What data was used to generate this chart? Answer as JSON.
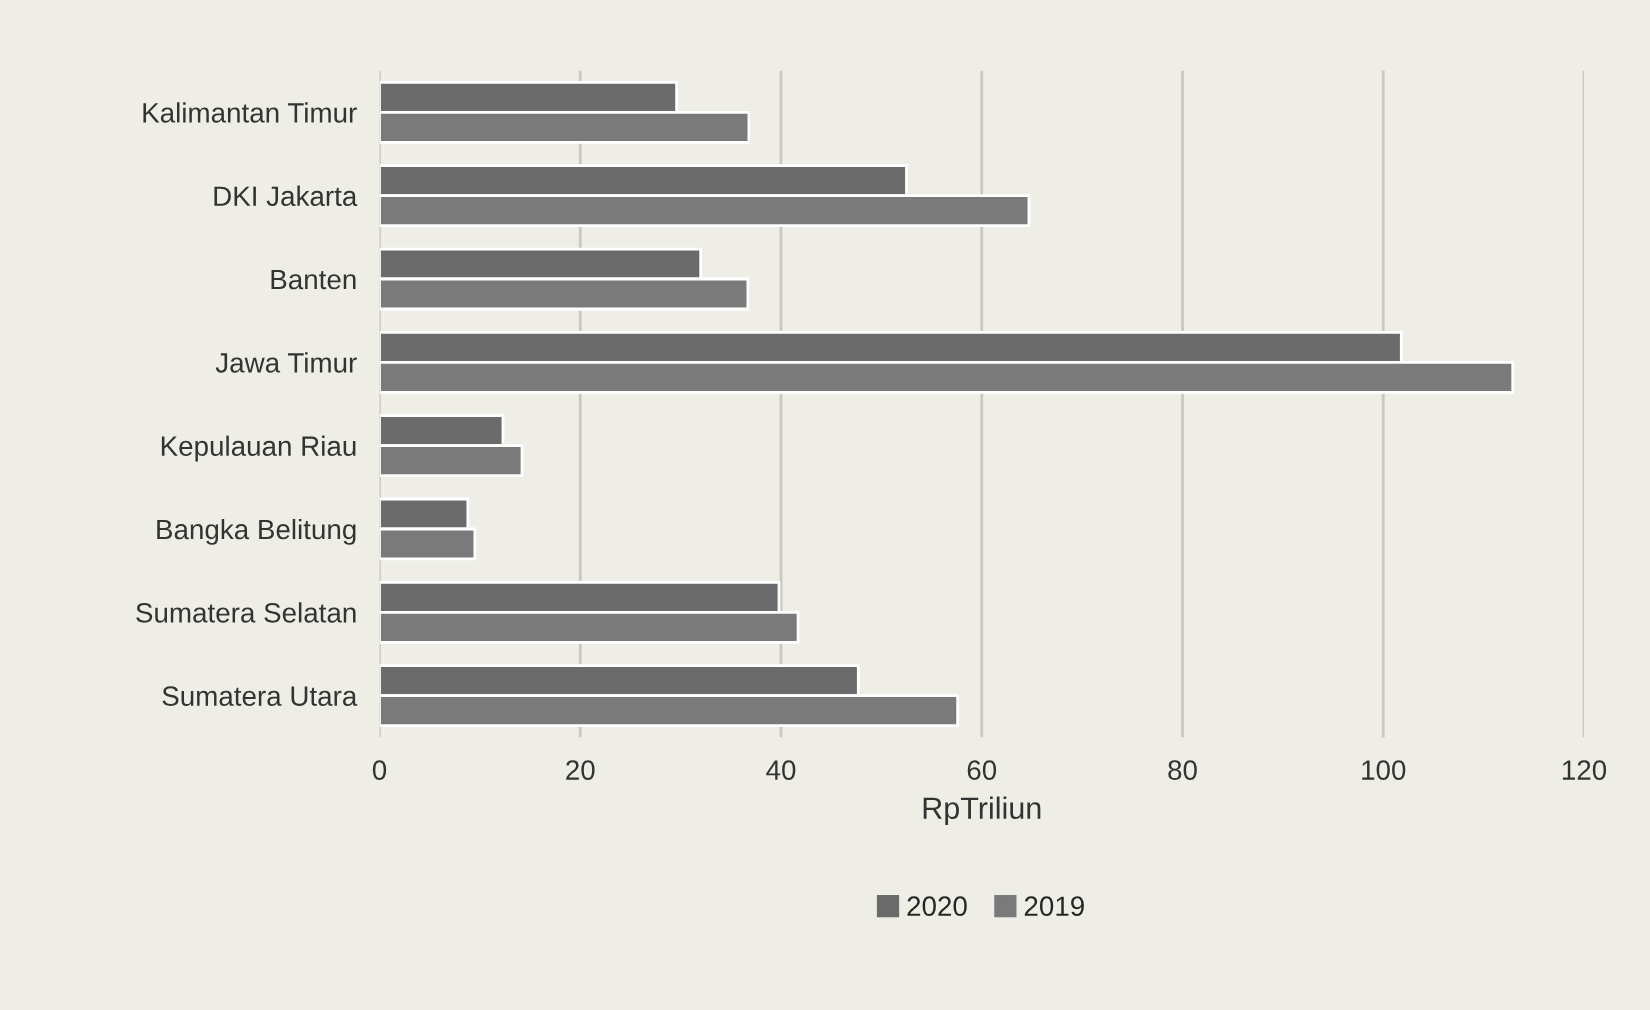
{
  "chart_data": {
    "type": "bar",
    "orientation": "horizontal",
    "xlabel": "RpTriliun",
    "categories": [
      "Kalimantan Timur",
      "DKI Jakarta",
      "Banten",
      "Jawa Timur",
      "Kepulauan Riau",
      "Bangka Belitung",
      "Sumatera Selatan",
      "Sumatera Utara"
    ],
    "series": [
      {
        "name": "2020",
        "color": "#6b6b6b",
        "values": [
          29.6,
          52.5,
          32,
          101.8,
          12.3,
          8.8,
          39.8,
          47.7
        ]
      },
      {
        "name": "2019",
        "color": "#7a7a7a",
        "values": [
          36.8,
          64.7,
          36.7,
          112.9,
          14.2,
          9.5,
          41.7,
          57.6
        ]
      }
    ],
    "xlim": [
      0,
      120
    ],
    "xticks": [
      0,
      20,
      40,
      60,
      80,
      100,
      120
    ],
    "grid": "x",
    "legend": "bottom"
  }
}
